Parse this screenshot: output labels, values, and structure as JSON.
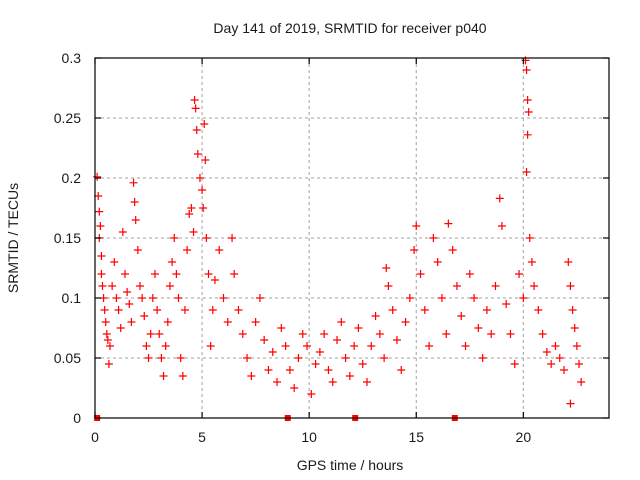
{
  "chart_data": {
    "type": "scatter",
    "title": "Day 141 of 2019, SRMTID for receiver p040",
    "xlabel": "GPS time / hours",
    "ylabel": "SRMTID / TECUs",
    "xlim": [
      0,
      24
    ],
    "ylim": [
      0,
      0.3
    ],
    "xticks": [
      0,
      5,
      10,
      15,
      20
    ],
    "xtick_labels": [
      "0",
      "5",
      "10",
      "15",
      "20"
    ],
    "yticks": [
      0,
      0.05,
      0.1,
      0.15,
      0.2,
      0.25,
      0.3
    ],
    "ytick_labels": [
      "0",
      "0.05",
      "0.1",
      "0.15",
      "0.2",
      "0.25",
      "0.3"
    ],
    "grid": true,
    "legend": "none",
    "marker": "plus",
    "color": "#ff0000",
    "series": [
      {
        "name": "SRMTID",
        "points": [
          [
            0.1,
            0.201
          ],
          [
            0.15,
            0.185
          ],
          [
            0.2,
            0.172
          ],
          [
            0.25,
            0.16
          ],
          [
            0.2,
            0.15
          ],
          [
            0.3,
            0.135
          ],
          [
            0.3,
            0.12
          ],
          [
            0.35,
            0.11
          ],
          [
            0.4,
            0.1
          ],
          [
            0.45,
            0.09
          ],
          [
            0.5,
            0.08
          ],
          [
            0.55,
            0.07
          ],
          [
            0.6,
            0.065
          ],
          [
            0.65,
            0.045
          ],
          [
            0.7,
            0.06
          ],
          [
            0.8,
            0.11
          ],
          [
            0.9,
            0.13
          ],
          [
            1.0,
            0.1
          ],
          [
            1.1,
            0.09
          ],
          [
            1.2,
            0.075
          ],
          [
            1.3,
            0.155
          ],
          [
            1.4,
            0.12
          ],
          [
            1.5,
            0.105
          ],
          [
            1.6,
            0.095
          ],
          [
            1.7,
            0.08
          ],
          [
            1.8,
            0.196
          ],
          [
            1.85,
            0.18
          ],
          [
            1.9,
            0.165
          ],
          [
            2.0,
            0.14
          ],
          [
            2.1,
            0.11
          ],
          [
            2.2,
            0.1
          ],
          [
            2.3,
            0.085
          ],
          [
            2.4,
            0.06
          ],
          [
            2.5,
            0.05
          ],
          [
            2.6,
            0.07
          ],
          [
            2.7,
            0.1
          ],
          [
            2.8,
            0.12
          ],
          [
            2.9,
            0.09
          ],
          [
            3.0,
            0.07
          ],
          [
            3.1,
            0.05
          ],
          [
            3.2,
            0.035
          ],
          [
            3.3,
            0.06
          ],
          [
            3.4,
            0.08
          ],
          [
            3.5,
            0.11
          ],
          [
            3.6,
            0.13
          ],
          [
            3.7,
            0.15
          ],
          [
            3.8,
            0.12
          ],
          [
            3.9,
            0.1
          ],
          [
            4.0,
            0.05
          ],
          [
            4.1,
            0.035
          ],
          [
            4.2,
            0.09
          ],
          [
            4.3,
            0.14
          ],
          [
            4.4,
            0.17
          ],
          [
            4.5,
            0.175
          ],
          [
            4.6,
            0.155
          ],
          [
            4.65,
            0.265
          ],
          [
            4.7,
            0.258
          ],
          [
            4.75,
            0.24
          ],
          [
            4.8,
            0.22
          ],
          [
            4.9,
            0.2
          ],
          [
            5.0,
            0.19
          ],
          [
            5.05,
            0.175
          ],
          [
            5.1,
            0.245
          ],
          [
            5.15,
            0.215
          ],
          [
            5.2,
            0.15
          ],
          [
            5.3,
            0.12
          ],
          [
            5.4,
            0.06
          ],
          [
            5.5,
            0.09
          ],
          [
            5.6,
            0.115
          ],
          [
            5.8,
            0.14
          ],
          [
            6.0,
            0.1
          ],
          [
            6.2,
            0.08
          ],
          [
            6.4,
            0.15
          ],
          [
            6.5,
            0.12
          ],
          [
            6.7,
            0.09
          ],
          [
            6.9,
            0.07
          ],
          [
            7.1,
            0.05
          ],
          [
            7.3,
            0.035
          ],
          [
            7.5,
            0.08
          ],
          [
            7.7,
            0.1
          ],
          [
            7.9,
            0.065
          ],
          [
            8.1,
            0.04
          ],
          [
            8.3,
            0.055
          ],
          [
            8.5,
            0.03
          ],
          [
            8.7,
            0.075
          ],
          [
            8.9,
            0.06
          ],
          [
            9.1,
            0.04
          ],
          [
            9.3,
            0.025
          ],
          [
            9.5,
            0.05
          ],
          [
            9.7,
            0.07
          ],
          [
            9.9,
            0.06
          ],
          [
            10.1,
            0.02
          ],
          [
            10.3,
            0.045
          ],
          [
            10.5,
            0.055
          ],
          [
            10.7,
            0.07
          ],
          [
            10.9,
            0.04
          ],
          [
            11.1,
            0.03
          ],
          [
            11.3,
            0.065
          ],
          [
            11.5,
            0.08
          ],
          [
            11.7,
            0.05
          ],
          [
            11.9,
            0.035
          ],
          [
            12.1,
            0.06
          ],
          [
            12.3,
            0.075
          ],
          [
            12.5,
            0.045
          ],
          [
            12.7,
            0.03
          ],
          [
            12.9,
            0.06
          ],
          [
            13.1,
            0.085
          ],
          [
            13.3,
            0.07
          ],
          [
            13.5,
            0.05
          ],
          [
            13.6,
            0.125
          ],
          [
            13.7,
            0.11
          ],
          [
            13.9,
            0.09
          ],
          [
            14.1,
            0.065
          ],
          [
            14.3,
            0.04
          ],
          [
            14.5,
            0.08
          ],
          [
            14.7,
            0.1
          ],
          [
            14.9,
            0.14
          ],
          [
            15.0,
            0.16
          ],
          [
            15.2,
            0.12
          ],
          [
            15.4,
            0.09
          ],
          [
            15.6,
            0.06
          ],
          [
            15.8,
            0.15
          ],
          [
            16.0,
            0.13
          ],
          [
            16.2,
            0.1
          ],
          [
            16.4,
            0.07
          ],
          [
            16.5,
            0.162
          ],
          [
            16.7,
            0.14
          ],
          [
            16.9,
            0.11
          ],
          [
            17.1,
            0.085
          ],
          [
            17.3,
            0.06
          ],
          [
            17.5,
            0.12
          ],
          [
            17.7,
            0.1
          ],
          [
            17.9,
            0.075
          ],
          [
            18.1,
            0.05
          ],
          [
            18.3,
            0.09
          ],
          [
            18.5,
            0.07
          ],
          [
            18.7,
            0.11
          ],
          [
            18.9,
            0.183
          ],
          [
            19.0,
            0.16
          ],
          [
            19.2,
            0.095
          ],
          [
            19.4,
            0.07
          ],
          [
            19.6,
            0.045
          ],
          [
            19.8,
            0.12
          ],
          [
            20.0,
            0.1
          ],
          [
            20.1,
            0.298
          ],
          [
            20.15,
            0.29
          ],
          [
            20.2,
            0.265
          ],
          [
            20.25,
            0.255
          ],
          [
            20.2,
            0.236
          ],
          [
            20.15,
            0.205
          ],
          [
            20.3,
            0.15
          ],
          [
            20.4,
            0.13
          ],
          [
            20.5,
            0.11
          ],
          [
            20.7,
            0.09
          ],
          [
            20.9,
            0.07
          ],
          [
            21.1,
            0.055
          ],
          [
            21.3,
            0.045
          ],
          [
            21.5,
            0.06
          ],
          [
            21.7,
            0.05
          ],
          [
            21.9,
            0.04
          ],
          [
            22.1,
            0.13
          ],
          [
            22.2,
            0.11
          ],
          [
            22.3,
            0.09
          ],
          [
            22.4,
            0.075
          ],
          [
            22.5,
            0.06
          ],
          [
            22.6,
            0.045
          ],
          [
            22.7,
            0.03
          ],
          [
            22.2,
            0.012
          ]
        ]
      }
    ],
    "gap_markers_x": [
      0.1,
      9.0,
      12.15,
      16.8
    ]
  }
}
